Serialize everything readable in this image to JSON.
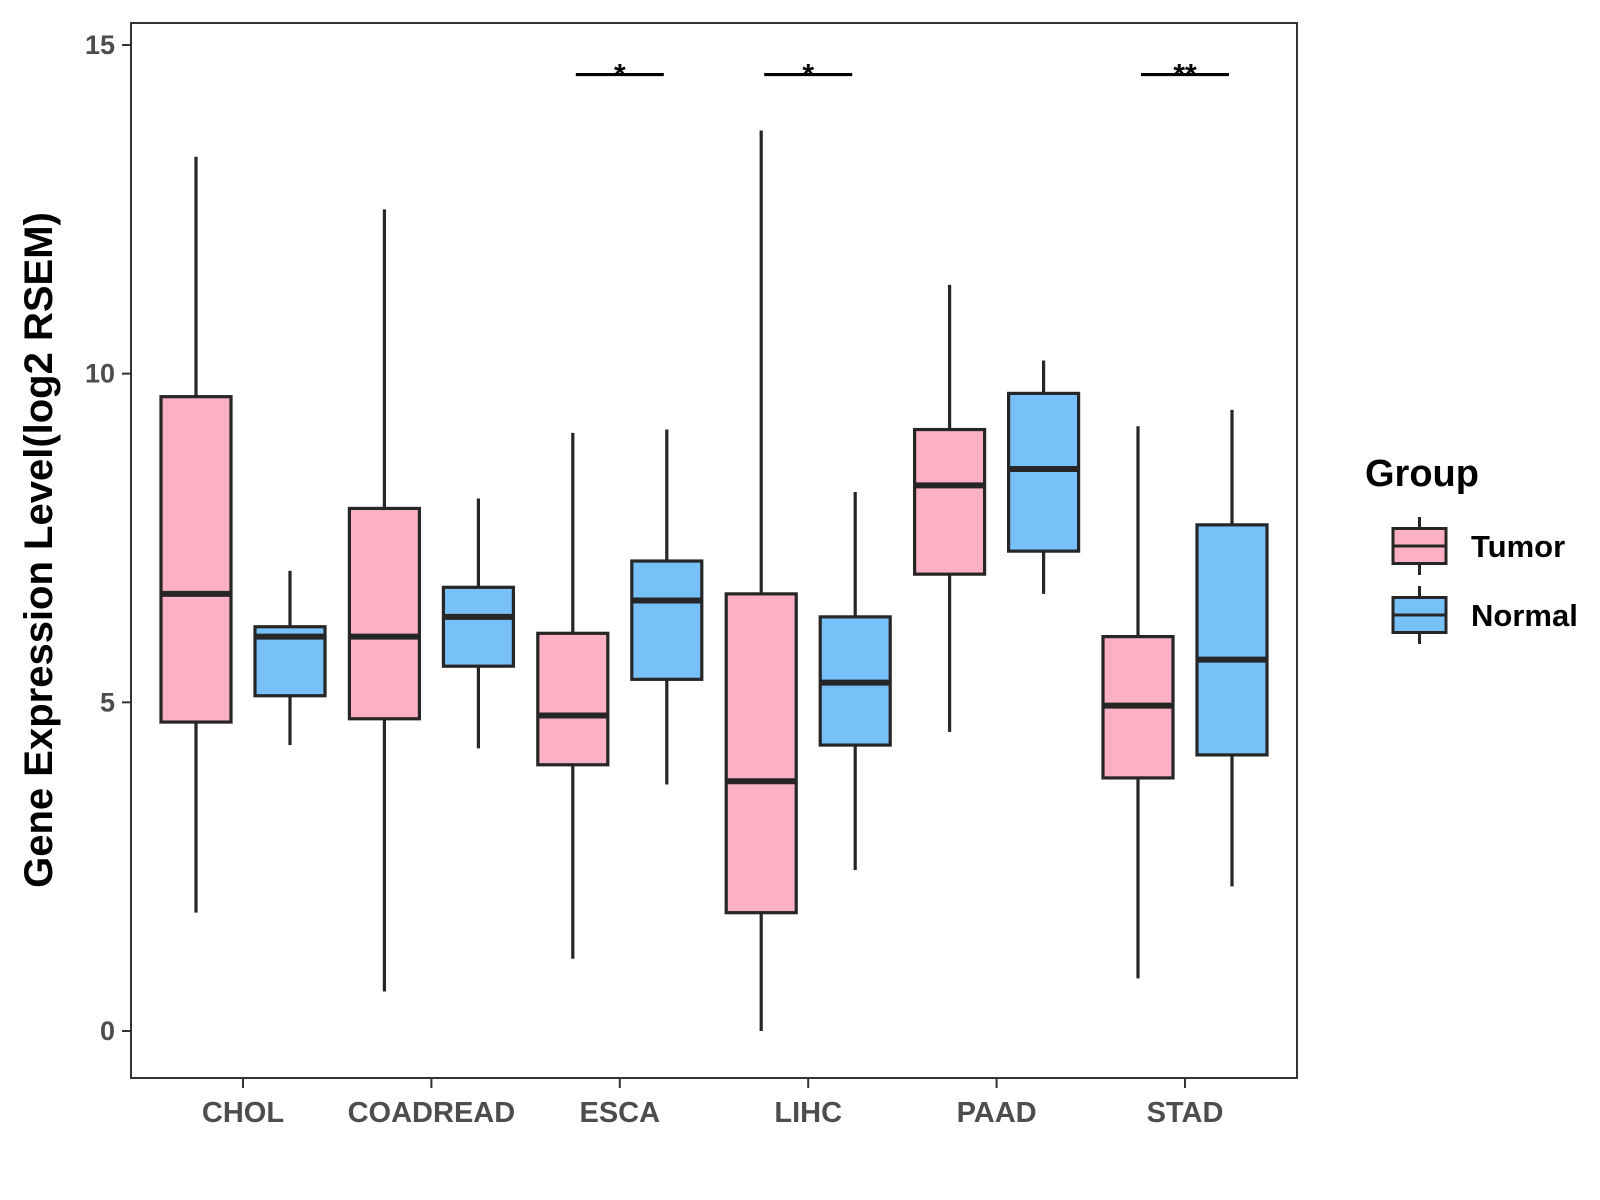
{
  "chart_data": {
    "type": "boxplot",
    "title": "",
    "xlabel": "",
    "ylabel": "Gene Expression Level(log2 RSEM)",
    "ylim": [
      -0.7,
      15.35
    ],
    "yticks": [
      0,
      5,
      10,
      15
    ],
    "ytick_labels": [
      "0",
      "5",
      "10",
      "15"
    ],
    "categories": [
      "CHOL",
      "COADREAD",
      "ESCA",
      "LIHC",
      "PAAD",
      "STAD"
    ],
    "legend": {
      "title": "Group",
      "position": "right",
      "entries": [
        {
          "name": "Tumor",
          "color": "#FBB1C3"
        },
        {
          "name": "Normal",
          "color": "#78C1F8"
        }
      ]
    },
    "series": [
      {
        "name": "Tumor",
        "color": "#FBB1C3",
        "boxes": [
          {
            "category": "CHOL",
            "min": 1.8,
            "q1": 4.7,
            "median": 6.65,
            "q3": 9.65,
            "max": 13.3
          },
          {
            "category": "COADREAD",
            "min": 0.6,
            "q1": 4.75,
            "median": 6.0,
            "q3": 7.95,
            "max": 12.5
          },
          {
            "category": "ESCA",
            "min": 1.1,
            "q1": 4.05,
            "median": 4.8,
            "q3": 6.05,
            "max": 9.1
          },
          {
            "category": "LIHC",
            "min": 0.0,
            "q1": 1.8,
            "median": 3.8,
            "q3": 6.65,
            "max": 13.7
          },
          {
            "category": "PAAD",
            "min": 4.55,
            "q1": 6.95,
            "median": 8.3,
            "q3": 9.15,
            "max": 11.35
          },
          {
            "category": "STAD",
            "min": 0.8,
            "q1": 3.85,
            "median": 4.95,
            "q3": 6.0,
            "max": 9.2
          }
        ]
      },
      {
        "name": "Normal",
        "color": "#78C1F8",
        "boxes": [
          {
            "category": "CHOL",
            "min": 4.35,
            "q1": 5.1,
            "median": 6.0,
            "q3": 6.15,
            "max": 7.0
          },
          {
            "category": "COADREAD",
            "min": 4.3,
            "q1": 5.55,
            "median": 6.3,
            "q3": 6.75,
            "max": 8.1
          },
          {
            "category": "ESCA",
            "min": 3.75,
            "q1": 5.35,
            "median": 6.55,
            "q3": 7.15,
            "max": 9.15
          },
          {
            "category": "LIHC",
            "min": 2.45,
            "q1": 4.35,
            "median": 5.3,
            "q3": 6.3,
            "max": 8.2
          },
          {
            "category": "PAAD",
            "min": 6.65,
            "q1": 7.3,
            "median": 8.55,
            "q3": 9.7,
            "max": 10.2
          },
          {
            "category": "STAD",
            "min": 2.2,
            "q1": 4.2,
            "median": 5.65,
            "q3": 7.7,
            "max": 9.45
          }
        ]
      }
    ],
    "annotations": [
      {
        "category": "ESCA",
        "text": "*",
        "y": 14.55
      },
      {
        "category": "LIHC",
        "text": "*",
        "y": 14.55
      },
      {
        "category": "STAD",
        "text": "**",
        "y": 14.55
      }
    ]
  }
}
